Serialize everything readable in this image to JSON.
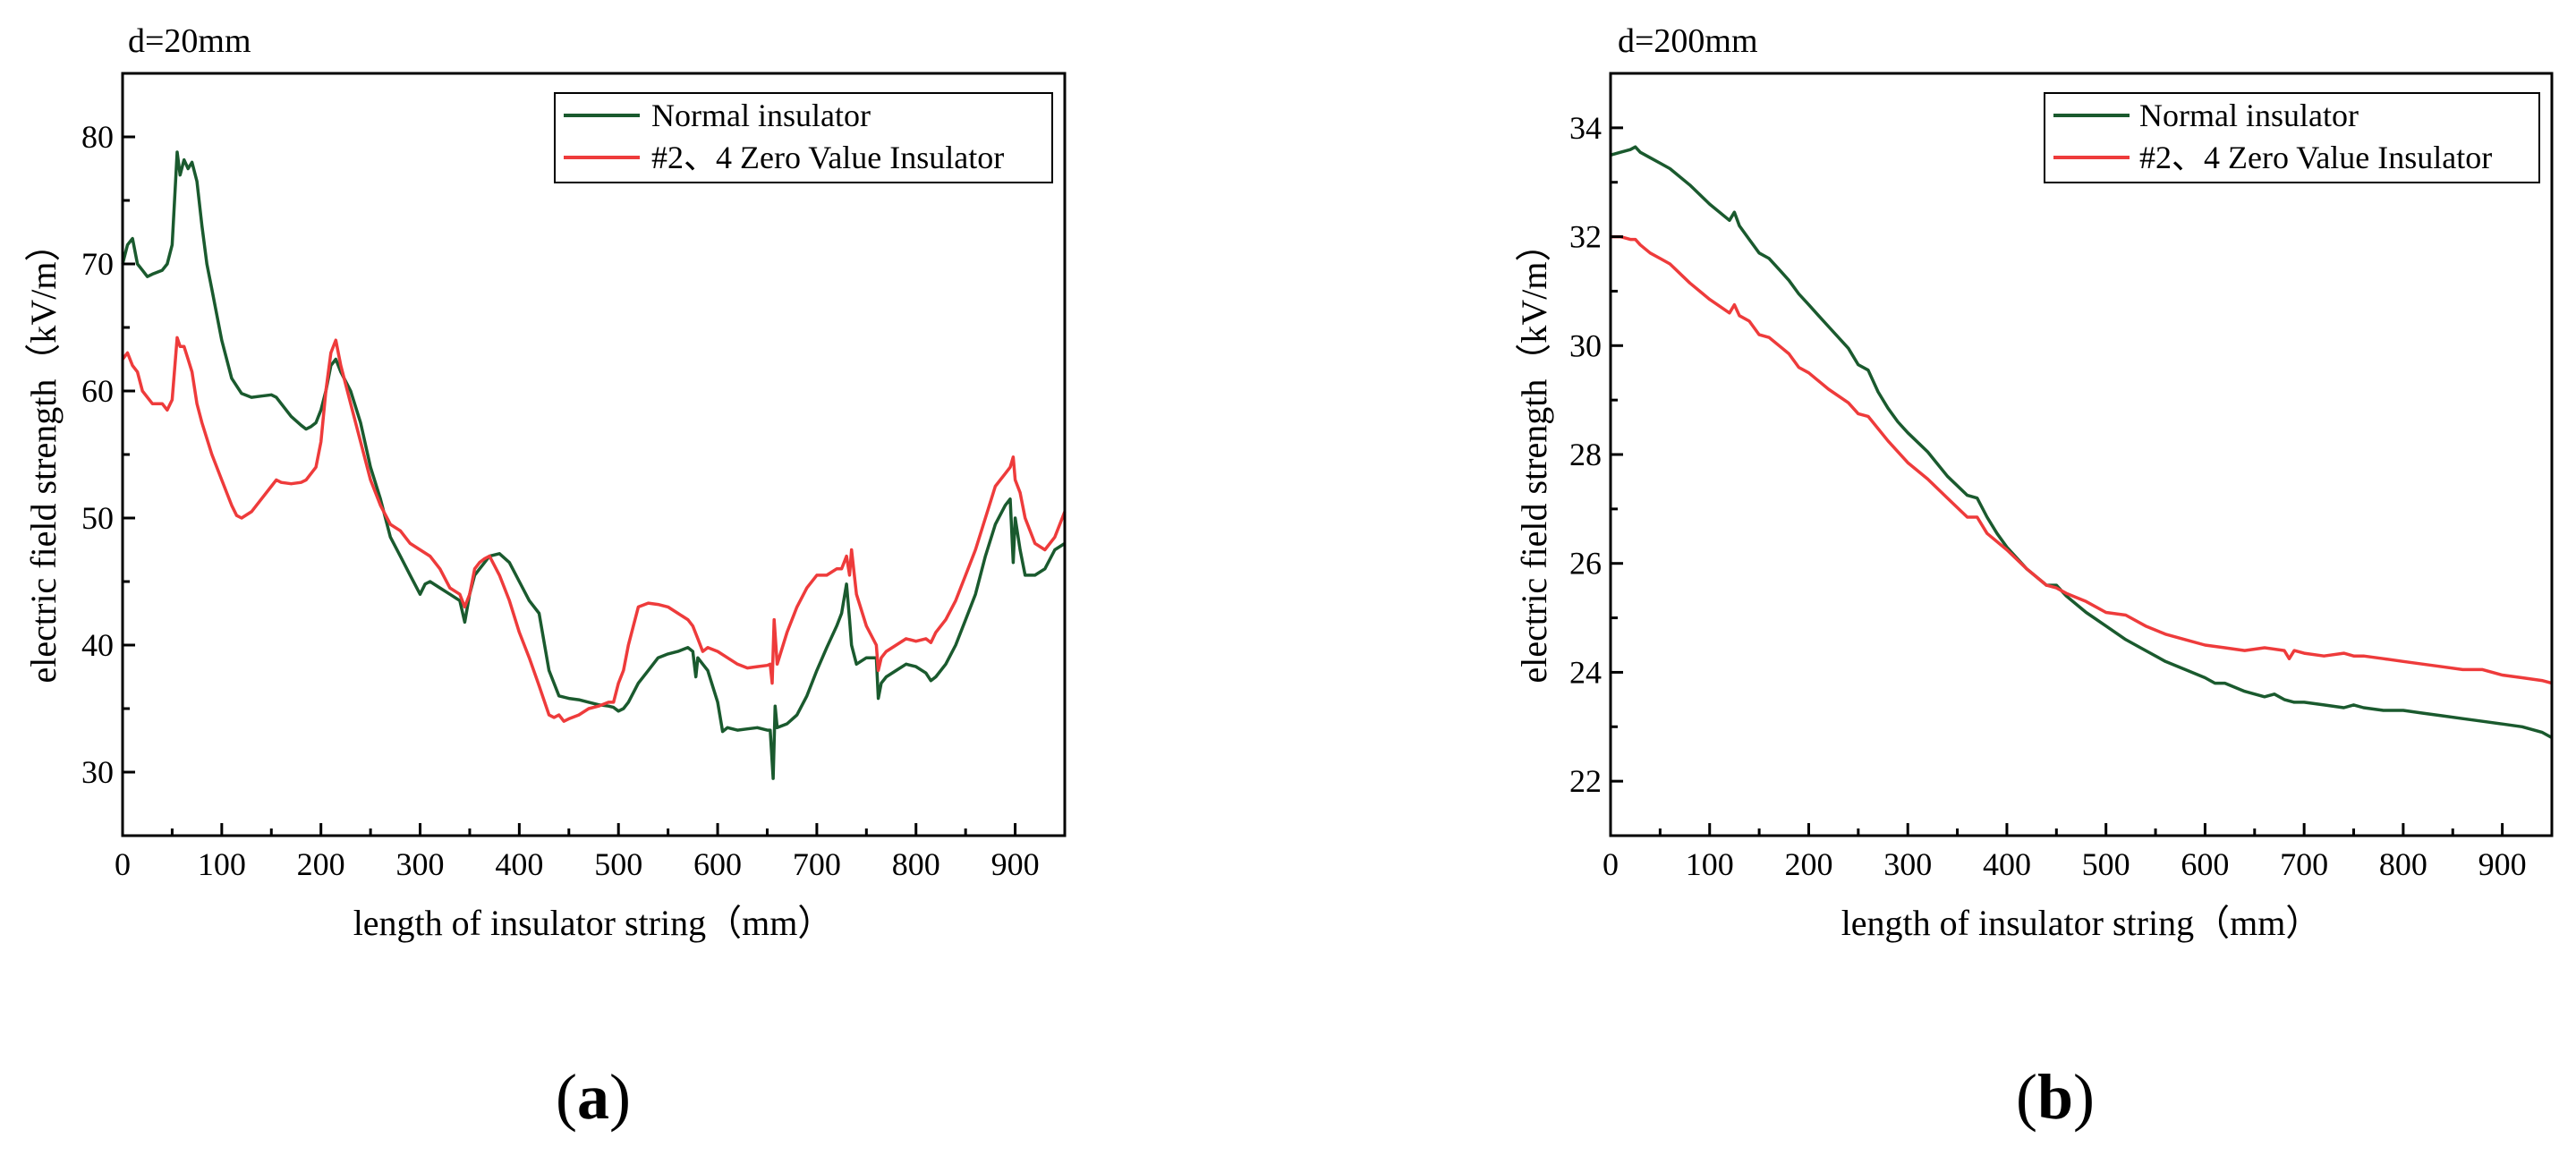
{
  "colors": {
    "normal": "#1a5a2e",
    "zero": "#ee3b3b"
  },
  "chart_data": [
    {
      "type": "line",
      "title": "d=20mm",
      "xlabel": "length of insulator string（mm）",
      "ylabel": "electric field strength（kV/m）",
      "xlim": [
        0,
        950
      ],
      "ylim": [
        25,
        85
      ],
      "xticks": [
        0,
        100,
        200,
        300,
        400,
        500,
        600,
        700,
        800,
        900
      ],
      "yticks": [
        30,
        40,
        50,
        60,
        70,
        80
      ],
      "legend_position": "top-right",
      "panel_label": {
        "open": "(",
        "letter": "a",
        "close": ")"
      },
      "series": [
        {
          "name": "Normal insulator",
          "color_key": "normal",
          "x": [
            0,
            5,
            10,
            15,
            20,
            25,
            30,
            40,
            45,
            50,
            55,
            58,
            62,
            66,
            70,
            75,
            80,
            85,
            90,
            100,
            110,
            120,
            130,
            140,
            150,
            155,
            160,
            170,
            180,
            185,
            190,
            195,
            200,
            205,
            210,
            215,
            220,
            230,
            240,
            250,
            260,
            270,
            280,
            290,
            300,
            305,
            310,
            320,
            330,
            340,
            345,
            350,
            355,
            360,
            365,
            370,
            380,
            390,
            400,
            410,
            420,
            430,
            435,
            440,
            450,
            460,
            470,
            480,
            490,
            495,
            500,
            505,
            510,
            520,
            530,
            540,
            550,
            560,
            570,
            575,
            578,
            580,
            585,
            590,
            600,
            605,
            610,
            620,
            630,
            640,
            650,
            653,
            656,
            658,
            660,
            670,
            680,
            690,
            700,
            710,
            720,
            725,
            730,
            733,
            735,
            740,
            750,
            760,
            762,
            765,
            770,
            780,
            790,
            800,
            810,
            815,
            820,
            830,
            840,
            850,
            860,
            870,
            880,
            890,
            895,
            898,
            900,
            905,
            910,
            920,
            930,
            940,
            950
          ],
          "y": [
            70,
            71.5,
            72,
            70,
            69.5,
            69,
            69.2,
            69.5,
            70,
            71.5,
            78.8,
            77,
            78.2,
            77.5,
            78,
            76.5,
            73,
            70,
            68,
            64,
            61,
            59.8,
            59.5,
            59.6,
            59.7,
            59.5,
            59,
            58,
            57.3,
            57,
            57.2,
            57.5,
            58.5,
            60,
            62,
            62.5,
            61.5,
            60,
            57.5,
            54,
            51.5,
            48.5,
            47,
            45.5,
            44,
            44.8,
            45,
            44.5,
            44,
            43.5,
            41.8,
            44,
            45.5,
            46,
            46.5,
            47,
            47.2,
            46.5,
            45,
            43.5,
            42.5,
            38,
            37,
            36,
            35.8,
            35.7,
            35.5,
            35.3,
            35.2,
            35.1,
            34.8,
            35,
            35.5,
            37,
            38,
            39,
            39.3,
            39.5,
            39.8,
            39.5,
            37.5,
            39,
            38.5,
            38,
            35.5,
            33.2,
            33.5,
            33.3,
            33.4,
            33.5,
            33.3,
            33.3,
            29.5,
            35.2,
            33.5,
            33.8,
            34.5,
            36,
            38,
            39.8,
            41.5,
            42.5,
            44.8,
            42,
            40,
            38.5,
            39,
            39,
            35.8,
            37,
            37.5,
            38,
            38.5,
            38.3,
            37.8,
            37.2,
            37.5,
            38.5,
            40,
            42,
            44,
            47,
            49.5,
            51,
            51.5,
            46.5,
            50,
            47.5,
            45.5,
            45.5,
            46,
            47.5,
            48
          ]
        },
        {
          "name": "#2、4 Zero Value Insulator",
          "color_key": "zero",
          "x": [
            0,
            5,
            10,
            15,
            20,
            25,
            30,
            40,
            45,
            50,
            55,
            58,
            62,
            66,
            70,
            75,
            80,
            90,
            100,
            110,
            115,
            120,
            130,
            140,
            150,
            155,
            160,
            170,
            180,
            185,
            190,
            195,
            200,
            205,
            210,
            215,
            220,
            230,
            240,
            250,
            260,
            270,
            280,
            290,
            300,
            310,
            320,
            330,
            340,
            345,
            350,
            355,
            360,
            365,
            370,
            380,
            390,
            400,
            410,
            420,
            430,
            435,
            440,
            445,
            450,
            460,
            470,
            480,
            490,
            495,
            500,
            505,
            510,
            520,
            530,
            540,
            550,
            560,
            570,
            575,
            580,
            585,
            590,
            600,
            610,
            620,
            630,
            640,
            650,
            653,
            655,
            657,
            660,
            670,
            680,
            690,
            700,
            710,
            720,
            725,
            730,
            733,
            735,
            740,
            750,
            760,
            762,
            765,
            770,
            780,
            790,
            800,
            810,
            815,
            820,
            830,
            840,
            850,
            860,
            870,
            880,
            890,
            895,
            898,
            900,
            905,
            910,
            920,
            930,
            940,
            950
          ],
          "y": [
            62.5,
            63,
            62,
            61.5,
            60,
            59.5,
            59,
            59,
            58.5,
            59.3,
            64.2,
            63.5,
            63.5,
            62.5,
            61.5,
            59,
            57.5,
            55,
            53,
            51,
            50.2,
            50,
            50.5,
            51.5,
            52.5,
            53,
            52.8,
            52.7,
            52.8,
            53,
            53.5,
            54,
            56,
            60,
            63,
            64,
            62,
            59,
            56,
            53,
            51,
            49.5,
            49,
            48,
            47.5,
            47,
            46,
            44.5,
            44,
            43,
            44,
            46,
            46.5,
            46.8,
            47,
            45.5,
            43.5,
            41,
            39,
            36.8,
            34.5,
            34.3,
            34.5,
            34,
            34.2,
            34.5,
            35,
            35.2,
            35.5,
            35.5,
            37,
            38,
            40,
            43,
            43.3,
            43.2,
            43,
            42.5,
            42,
            41.5,
            40.5,
            39.5,
            39.8,
            39.5,
            39,
            38.5,
            38.2,
            38.3,
            38.4,
            38.5,
            37,
            42,
            38.5,
            41,
            43,
            44.5,
            45.5,
            45.5,
            46,
            46,
            47,
            45.5,
            47.5,
            44,
            41.5,
            40,
            38,
            39,
            39.5,
            40,
            40.5,
            40.3,
            40.5,
            40.2,
            41,
            42,
            43.5,
            45.5,
            47.5,
            50,
            52.5,
            53.5,
            54,
            54.8,
            53,
            52,
            50,
            48,
            47.5,
            48.5,
            50.5
          ]
        }
      ]
    },
    {
      "type": "line",
      "title": "d=200mm",
      "xlabel": "length of insulator string（mm）",
      "ylabel": "electric field strength（kV/m）",
      "xlim": [
        0,
        950
      ],
      "ylim": [
        21,
        35
      ],
      "xticks": [
        0,
        100,
        200,
        300,
        400,
        500,
        600,
        700,
        800,
        900
      ],
      "yticks": [
        22,
        24,
        26,
        28,
        30,
        32,
        34
      ],
      "legend_position": "top-right",
      "panel_label": {
        "open": "(",
        "letter": "b",
        "close": ")"
      },
      "series": [
        {
          "name": "Normal insulator",
          "color_key": "normal",
          "x": [
            0,
            10,
            20,
            25,
            30,
            40,
            50,
            60,
            80,
            100,
            120,
            125,
            130,
            140,
            150,
            160,
            170,
            180,
            190,
            200,
            210,
            220,
            240,
            250,
            260,
            270,
            280,
            290,
            300,
            320,
            340,
            360,
            370,
            380,
            390,
            400,
            420,
            440,
            450,
            460,
            470,
            480,
            500,
            520,
            540,
            560,
            580,
            600,
            610,
            620,
            640,
            660,
            670,
            680,
            690,
            700,
            720,
            740,
            750,
            760,
            780,
            800,
            820,
            840,
            860,
            880,
            900,
            920,
            940,
            950
          ],
          "y": [
            33.5,
            33.55,
            33.6,
            33.65,
            33.55,
            33.45,
            33.35,
            33.25,
            32.95,
            32.6,
            32.3,
            32.45,
            32.2,
            31.95,
            31.7,
            31.6,
            31.4,
            31.2,
            30.95,
            30.75,
            30.55,
            30.35,
            29.95,
            29.65,
            29.55,
            29.15,
            28.85,
            28.6,
            28.4,
            28.05,
            27.6,
            27.25,
            27.2,
            26.85,
            26.55,
            26.3,
            25.9,
            25.6,
            25.6,
            25.4,
            25.25,
            25.1,
            24.85,
            24.6,
            24.4,
            24.2,
            24.05,
            23.9,
            23.8,
            23.8,
            23.65,
            23.55,
            23.6,
            23.5,
            23.45,
            23.45,
            23.4,
            23.35,
            23.4,
            23.35,
            23.3,
            23.3,
            23.25,
            23.2,
            23.15,
            23.1,
            23.05,
            23,
            22.9,
            22.8
          ]
        },
        {
          "name": "#2、4 Zero Value Insulator",
          "color_key": "zero",
          "x": [
            0,
            10,
            20,
            25,
            30,
            40,
            50,
            60,
            80,
            100,
            120,
            125,
            130,
            140,
            150,
            160,
            170,
            180,
            190,
            200,
            220,
            240,
            250,
            260,
            280,
            300,
            320,
            340,
            360,
            370,
            380,
            400,
            420,
            440,
            450,
            460,
            480,
            500,
            520,
            540,
            560,
            580,
            600,
            620,
            640,
            660,
            680,
            685,
            690,
            700,
            720,
            740,
            750,
            760,
            780,
            800,
            820,
            840,
            860,
            880,
            900,
            920,
            940,
            950
          ],
          "y": [
            32,
            32,
            31.95,
            31.95,
            31.85,
            31.7,
            31.6,
            31.5,
            31.15,
            30.85,
            30.6,
            30.75,
            30.55,
            30.45,
            30.2,
            30.15,
            30,
            29.85,
            29.6,
            29.5,
            29.2,
            28.95,
            28.75,
            28.7,
            28.25,
            27.85,
            27.55,
            27.2,
            26.85,
            26.85,
            26.55,
            26.25,
            25.9,
            25.6,
            25.55,
            25.45,
            25.3,
            25.1,
            25.05,
            24.85,
            24.7,
            24.6,
            24.5,
            24.45,
            24.4,
            24.45,
            24.4,
            24.25,
            24.4,
            24.35,
            24.3,
            24.35,
            24.3,
            24.3,
            24.25,
            24.2,
            24.15,
            24.1,
            24.05,
            24.05,
            23.95,
            23.9,
            23.85,
            23.8
          ]
        }
      ]
    }
  ]
}
